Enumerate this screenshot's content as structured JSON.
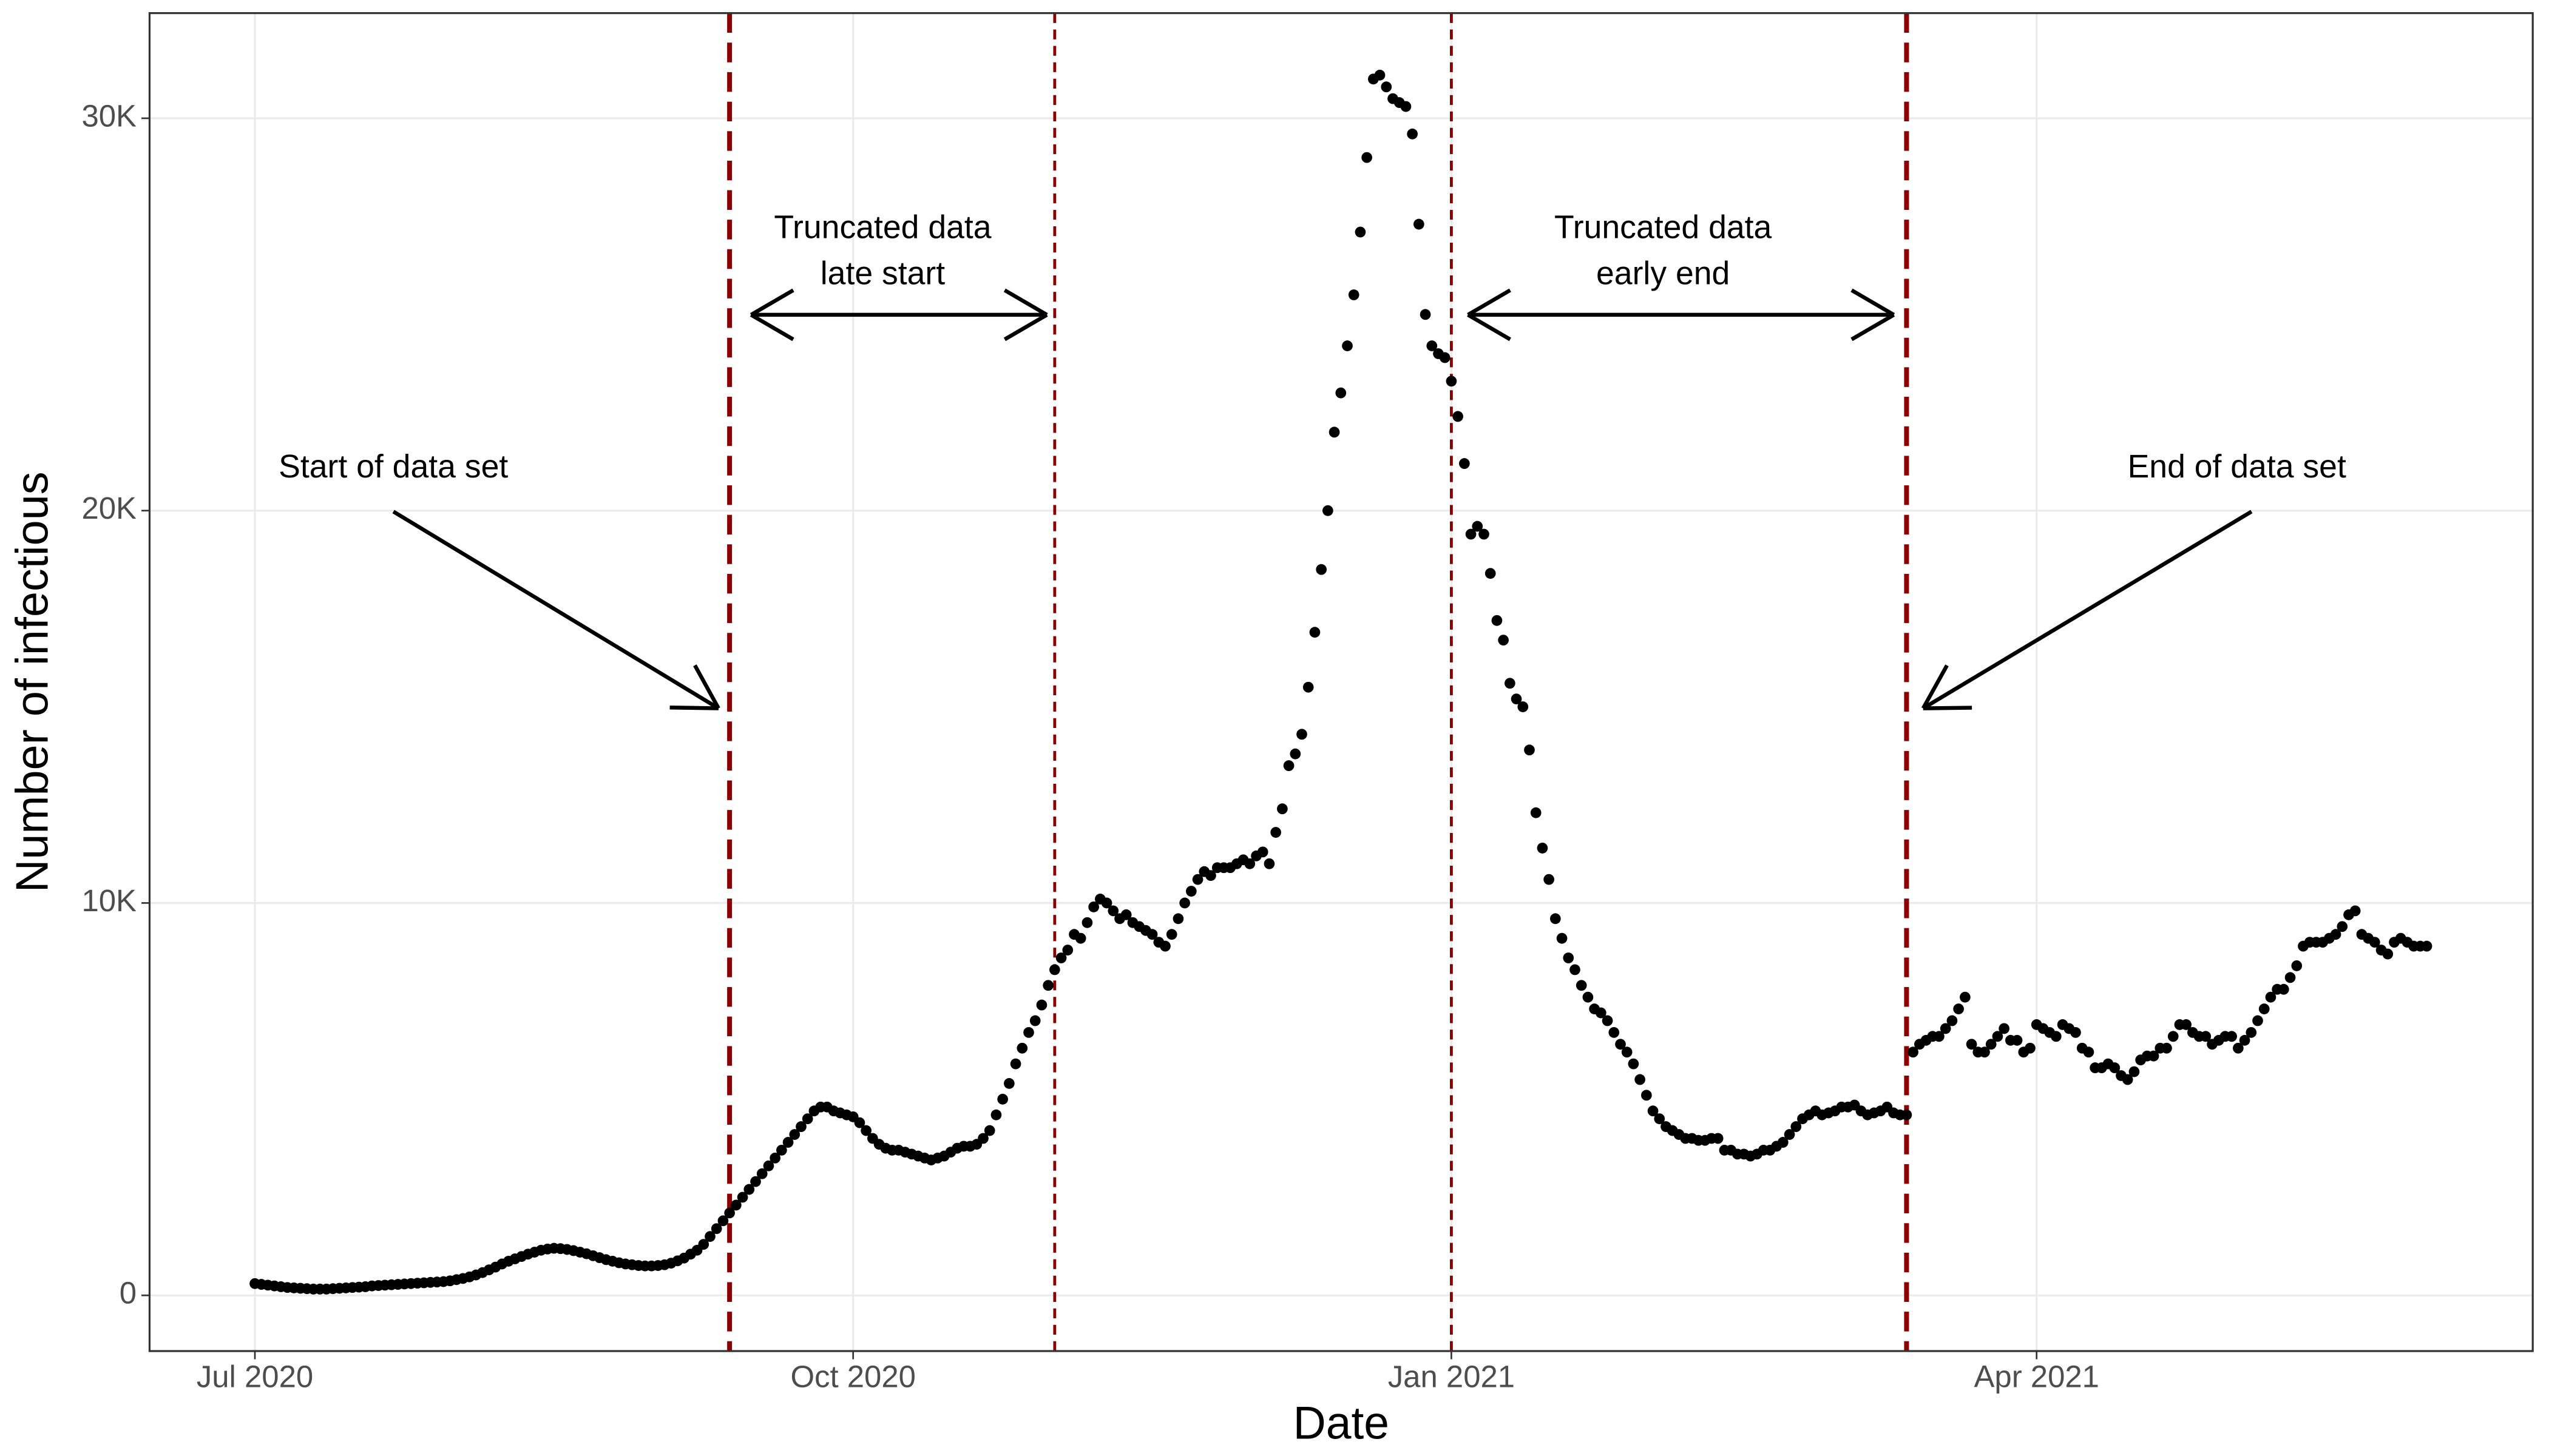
{
  "chart_data": {
    "type": "scatter",
    "x_label": "Date",
    "y_label": "Number of infectious",
    "color": "#000000",
    "vline_color": "#8b0000",
    "grid": true,
    "xlim": [
      -16.2,
      350.3
    ],
    "ylim": [
      -1420,
      32680
    ],
    "xticks": [
      {
        "value": 0,
        "label": "Jul 2020"
      },
      {
        "value": 92,
        "label": "Oct 2020"
      },
      {
        "value": 184,
        "label": "Jan 2021"
      },
      {
        "value": 274,
        "label": "Apr 2021"
      }
    ],
    "yticks": [
      0,
      {
        "value": 10000,
        "label": "10K"
      },
      {
        "value": 20000,
        "label": "20K"
      },
      {
        "value": 30000,
        "label": "30K"
      }
    ],
    "vlines": [
      73,
      123,
      184,
      254
    ],
    "annotations": [
      [
        "Start of data set"
      ],
      [
        "Truncated data",
        "late start"
      ],
      [
        "Truncated data",
        "early end"
      ],
      [
        "End of data set"
      ]
    ],
    "x": [
      0,
      1,
      2,
      3,
      4,
      5,
      6,
      7,
      8,
      9,
      10,
      11,
      12,
      13,
      14,
      15,
      16,
      17,
      18,
      19,
      20,
      21,
      22,
      23,
      24,
      25,
      26,
      27,
      28,
      29,
      30,
      31,
      32,
      33,
      34,
      35,
      36,
      37,
      38,
      39,
      40,
      41,
      42,
      43,
      44,
      45,
      46,
      47,
      48,
      49,
      50,
      51,
      52,
      53,
      54,
      55,
      56,
      57,
      58,
      59,
      60,
      61,
      62,
      63,
      64,
      65,
      66,
      67,
      68,
      69,
      70,
      71,
      72,
      73,
      74,
      75,
      76,
      77,
      78,
      79,
      80,
      81,
      82,
      83,
      84,
      85,
      86,
      87,
      88,
      89,
      90,
      91,
      92,
      93,
      94,
      95,
      96,
      97,
      98,
      99,
      100,
      101,
      102,
      103,
      104,
      105,
      106,
      107,
      108,
      109,
      110,
      111,
      112,
      113,
      114,
      115,
      116,
      117,
      118,
      119,
      120,
      121,
      122,
      123,
      124,
      125,
      126,
      127,
      128,
      129,
      130,
      131,
      132,
      133,
      134,
      135,
      136,
      137,
      138,
      139,
      140,
      141,
      142,
      143,
      144,
      145,
      146,
      147,
      148,
      149,
      150,
      151,
      152,
      153,
      154,
      155,
      156,
      157,
      158,
      159,
      160,
      161,
      162,
      163,
      164,
      165,
      166,
      167,
      168,
      169,
      170,
      171,
      172,
      173,
      174,
      175,
      176,
      177,
      178,
      179,
      180,
      181,
      182,
      183,
      184,
      185,
      186,
      187,
      188,
      189,
      190,
      191,
      192,
      193,
      194,
      195,
      196,
      197,
      198,
      199,
      200,
      201,
      202,
      203,
      204,
      205,
      206,
      207,
      208,
      209,
      210,
      211,
      212,
      213,
      214,
      215,
      216,
      217,
      218,
      219,
      220,
      221,
      222,
      223,
      224,
      225,
      226,
      227,
      228,
      229,
      230,
      231,
      232,
      233,
      234,
      235,
      236,
      237,
      238,
      239,
      240,
      241,
      242,
      243,
      244,
      245,
      246,
      247,
      248,
      249,
      250,
      251,
      252,
      253,
      254,
      255,
      256,
      257,
      258,
      259,
      260,
      261,
      262,
      263,
      264,
      265,
      266,
      267,
      268,
      269,
      270,
      271,
      272,
      273,
      274,
      275,
      276,
      277,
      278,
      279,
      280,
      281,
      282,
      283,
      284,
      285,
      286,
      287,
      288,
      289,
      290,
      291,
      292,
      293,
      294,
      295,
      296,
      297,
      298,
      299,
      300,
      301,
      302,
      303,
      304,
      305,
      306,
      307,
      308,
      309,
      310,
      311,
      312,
      313,
      314,
      315,
      316,
      317,
      318,
      319,
      320,
      321,
      322,
      323,
      324,
      325,
      326,
      327,
      328,
      329,
      330,
      331,
      332,
      333,
      334
    ],
    "values": [
      300,
      280,
      260,
      240,
      220,
      200,
      190,
      180,
      170,
      160,
      160,
      160,
      170,
      180,
      190,
      200,
      210,
      220,
      240,
      250,
      260,
      270,
      280,
      290,
      300,
      310,
      320,
      330,
      340,
      350,
      370,
      400,
      430,
      470,
      520,
      580,
      650,
      720,
      800,
      870,
      930,
      990,
      1050,
      1100,
      1150,
      1180,
      1200,
      1190,
      1170,
      1140,
      1100,
      1060,
      1010,
      960,
      910,
      870,
      830,
      800,
      780,
      760,
      750,
      750,
      760,
      780,
      820,
      880,
      950,
      1050,
      1150,
      1300,
      1500,
      1700,
      1900,
      2100,
      2300,
      2500,
      2700,
      2900,
      3100,
      3300,
      3500,
      3700,
      3900,
      4100,
      4300,
      4500,
      4700,
      4800,
      4800,
      4700,
      4650,
      4600,
      4550,
      4400,
      4200,
      4000,
      3850,
      3750,
      3700,
      3700,
      3650,
      3600,
      3550,
      3500,
      3450,
      3500,
      3550,
      3650,
      3750,
      3800,
      3800,
      3850,
      4000,
      4200,
      4600,
      5000,
      5400,
      5900,
      6300,
      6700,
      7000,
      7400,
      7900,
      8300,
      8600,
      8800,
      9200,
      9100,
      9500,
      9900,
      10100,
      10000,
      9800,
      9600,
      9700,
      9500,
      9400,
      9300,
      9200,
      9000,
      8900,
      9200,
      9600,
      10000,
      10300,
      10600,
      10800,
      10700,
      10900,
      10900,
      10900,
      11000,
      11100,
      11000,
      11200,
      11300,
      11000,
      11800,
      12400,
      13500,
      13800,
      14300,
      15500,
      16900,
      18500,
      20000,
      22000,
      23000,
      24200,
      25500,
      27100,
      29000,
      31000,
      31100,
      30800,
      30500,
      30400,
      30300,
      29600,
      27300,
      25000,
      24200,
      24000,
      23900,
      23300,
      22400,
      21200,
      19400,
      19600,
      19400,
      18400,
      17200,
      16700,
      15600,
      15200,
      15000,
      13900,
      12300,
      11400,
      10600,
      9600,
      9100,
      8600,
      8300,
      7900,
      7600,
      7300,
      7200,
      7000,
      6700,
      6400,
      6200,
      5900,
      5500,
      5100,
      4700,
      4500,
      4300,
      4200,
      4100,
      4000,
      4000,
      3950,
      3950,
      4000,
      4000,
      3700,
      3700,
      3600,
      3600,
      3550,
      3600,
      3700,
      3700,
      3800,
      3900,
      4100,
      4300,
      4500,
      4600,
      4700,
      4600,
      4650,
      4700,
      4800,
      4800,
      4850,
      4700,
      4600,
      4650,
      4700,
      4800,
      4650,
      4600,
      4600,
      6200,
      6400,
      6500,
      6600,
      6600,
      6800,
      7000,
      7300,
      7600,
      6400,
      6200,
      6200,
      6400,
      6600,
      6800,
      6500,
      6500,
      6200,
      6300,
      6900,
      6800,
      6700,
      6600,
      6900,
      6800,
      6700,
      6300,
      6200,
      5800,
      5800,
      5900,
      5800,
      5600,
      5500,
      5700,
      6000,
      6100,
      6100,
      6300,
      6300,
      6600,
      6900,
      6900,
      6700,
      6600,
      6600,
      6400,
      6500,
      6600,
      6600,
      6300,
      6500,
      6700,
      7000,
      7300,
      7600,
      7800,
      7800,
      8100,
      8400,
      8900,
      9000,
      9000,
      9000,
      9100,
      9200,
      9400,
      9700,
      9800,
      9200,
      9100,
      9000,
      8800,
      8700,
      9000,
      9100,
      9000,
      8900,
      8900,
      8900
    ]
  }
}
